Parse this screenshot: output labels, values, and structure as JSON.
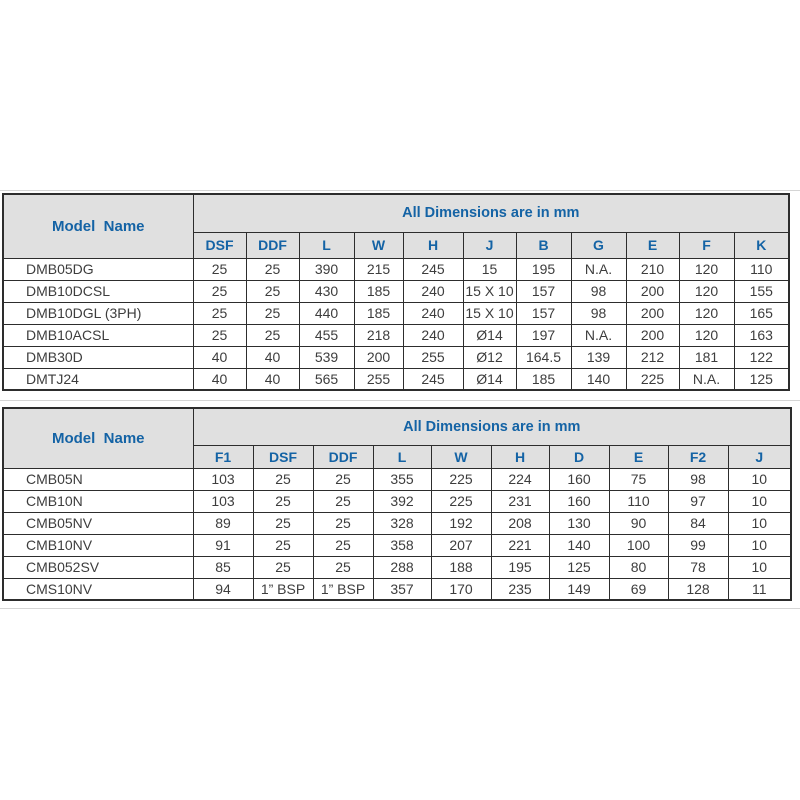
{
  "page": {
    "colors": {
      "accent_blue": "#1463a5",
      "header_gray": "#e0e0e0",
      "border_dark": "#2d2d2d",
      "text_dark": "#3d3d3d",
      "scan_edge_gray": "#d5d5d5"
    }
  },
  "tables": [
    {
      "name": "dmb-dimensions-table",
      "model_header": "Model  Name",
      "span_header": "All Dimensions are in mm",
      "columns": [
        "DSF",
        "DDF",
        "L",
        "W",
        "H",
        "J",
        "B",
        "G",
        "E",
        "F",
        "K"
      ],
      "rows": [
        {
          "model": "DMB05DG",
          "values": [
            "25",
            "25",
            "390",
            "215",
            "245",
            "15",
            "195",
            "N.A.",
            "210",
            "120",
            "110"
          ]
        },
        {
          "model": "DMB10DCSL",
          "values": [
            "25",
            "25",
            "430",
            "185",
            "240",
            "15 X 10",
            "157",
            "98",
            "200",
            "120",
            "155"
          ]
        },
        {
          "model": "DMB10DGL (3PH)",
          "values": [
            "25",
            "25",
            "440",
            "185",
            "240",
            "15 X 10",
            "157",
            "98",
            "200",
            "120",
            "165"
          ]
        },
        {
          "model": "DMB10ACSL",
          "values": [
            "25",
            "25",
            "455",
            "218",
            "240",
            "Ø14",
            "197",
            "N.A.",
            "200",
            "120",
            "163"
          ]
        },
        {
          "model": "DMB30D",
          "values": [
            "40",
            "40",
            "539",
            "200",
            "255",
            "Ø12",
            "164.5",
            "139",
            "212",
            "181",
            "122"
          ]
        },
        {
          "model": "DMTJ24",
          "values": [
            "40",
            "40",
            "565",
            "255",
            "245",
            "Ø14",
            "185",
            "140",
            "225",
            "N.A.",
            "125"
          ]
        }
      ]
    },
    {
      "name": "cmb-dimensions-table",
      "model_header": "Model  Name",
      "span_header": "All Dimensions are in mm",
      "columns": [
        "F1",
        "DSF",
        "DDF",
        "L",
        "W",
        "H",
        "D",
        "E",
        "F2",
        "J"
      ],
      "rows": [
        {
          "model": "CMB05N",
          "values": [
            "103",
            "25",
            "25",
            "355",
            "225",
            "224",
            "160",
            "75",
            "98",
            "10"
          ]
        },
        {
          "model": "CMB10N",
          "values": [
            "103",
            "25",
            "25",
            "392",
            "225",
            "231",
            "160",
            "110",
            "97",
            "10"
          ]
        },
        {
          "model": "CMB05NV",
          "values": [
            "89",
            "25",
            "25",
            "328",
            "192",
            "208",
            "130",
            "90",
            "84",
            "10"
          ]
        },
        {
          "model": "CMB10NV",
          "values": [
            "91",
            "25",
            "25",
            "358",
            "207",
            "221",
            "140",
            "100",
            "99",
            "10"
          ]
        },
        {
          "model": "CMB052SV",
          "values": [
            "85",
            "25",
            "25",
            "288",
            "188",
            "195",
            "125",
            "80",
            "78",
            "10"
          ]
        },
        {
          "model": "CMS10NV",
          "values": [
            "94",
            "1” BSP",
            "1” BSP",
            "357",
            "170",
            "235",
            "149",
            "69",
            "128",
            "11"
          ]
        }
      ]
    }
  ]
}
